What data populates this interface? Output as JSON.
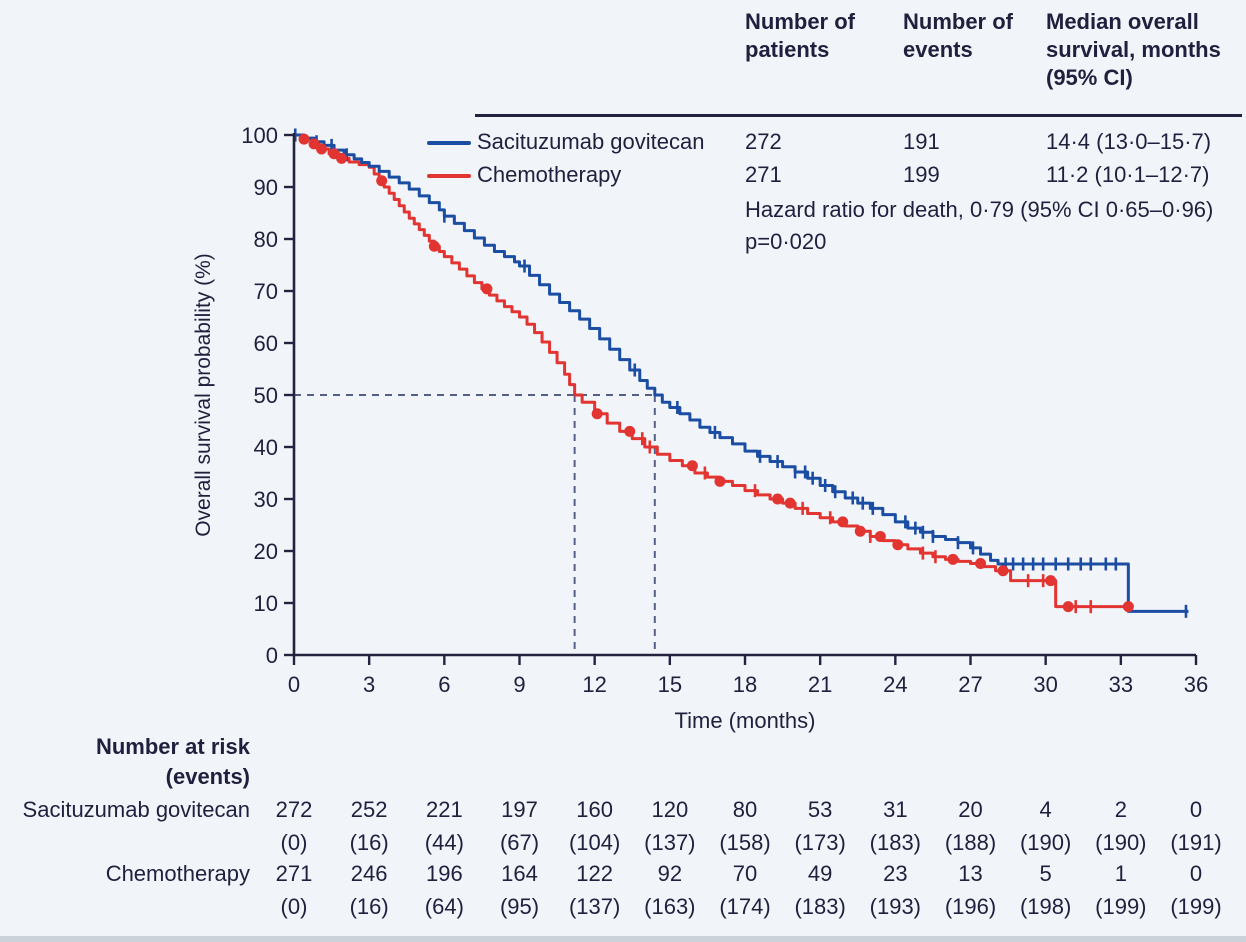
{
  "colors": {
    "background": "#f1f4f9",
    "text": "#211f3e",
    "sg_blue": "#1b4ea3",
    "chemo_red": "#e23430",
    "axis": "#23223f",
    "dash_guide": "#55608a"
  },
  "summary_table": {
    "col_headers": [
      "Number of patients",
      "Number of events",
      "Median overall survival, months (95% CI)"
    ],
    "rows": [
      {
        "label": "Sacituzumab govitecan",
        "patients": "272",
        "events": "191",
        "median": "14·4 (13·0–15·7)"
      },
      {
        "label": "Chemotherapy",
        "patients": "271",
        "events": "199",
        "median": "11·2 (10·1–12·7)"
      }
    ],
    "hazard_note": "Hazard ratio for death, 0·79 (95% CI 0·65–0·96)",
    "p_value": "p=0·020"
  },
  "chart_data": {
    "type": "line",
    "subtype": "kaplan-meier-step",
    "title": "",
    "xlabel": "Time (months)",
    "ylabel": "Overall survival probability (%)",
    "xlim": [
      0,
      36
    ],
    "ylim": [
      0,
      100
    ],
    "xticks": [
      0,
      3,
      6,
      9,
      12,
      15,
      18,
      21,
      24,
      27,
      30,
      33,
      36
    ],
    "yticks": [
      0,
      10,
      20,
      30,
      40,
      50,
      60,
      70,
      80,
      90,
      100
    ],
    "grid": false,
    "legend_position": "top-left-of-summary-table",
    "median_guides": {
      "y": 50,
      "x_values": [
        11.2,
        14.4
      ]
    },
    "series": [
      {
        "name": "Sacituzumab govitecan",
        "color": "#1b4ea3",
        "marker": "tick",
        "points": [
          [
            0,
            100
          ],
          [
            0.4,
            99.4
          ],
          [
            0.8,
            98.7
          ],
          [
            1.2,
            98.0
          ],
          [
            1.6,
            97.1
          ],
          [
            2.0,
            96.2
          ],
          [
            2.4,
            95.4
          ],
          [
            2.7,
            94.7
          ],
          [
            3.0,
            94.0
          ],
          [
            3.4,
            93.0
          ],
          [
            3.8,
            91.9
          ],
          [
            4.2,
            90.8
          ],
          [
            4.6,
            89.6
          ],
          [
            5.0,
            88.3
          ],
          [
            5.4,
            87.0
          ],
          [
            5.8,
            85.6
          ],
          [
            6.0,
            84.4
          ],
          [
            6.4,
            83.0
          ],
          [
            6.8,
            81.6
          ],
          [
            7.2,
            80.2
          ],
          [
            7.6,
            78.8
          ],
          [
            8.0,
            77.6
          ],
          [
            8.4,
            76.6
          ],
          [
            8.8,
            75.6
          ],
          [
            9.0,
            74.8
          ],
          [
            9.4,
            73.0
          ],
          [
            9.8,
            71.2
          ],
          [
            10.2,
            69.4
          ],
          [
            10.6,
            67.8
          ],
          [
            11.0,
            66.2
          ],
          [
            11.4,
            64.6
          ],
          [
            11.8,
            62.8
          ],
          [
            12.2,
            60.8
          ],
          [
            12.6,
            58.8
          ],
          [
            13.0,
            56.8
          ],
          [
            13.4,
            54.8
          ],
          [
            13.8,
            52.8
          ],
          [
            14.1,
            51.3
          ],
          [
            14.4,
            50.0
          ],
          [
            14.7,
            48.6
          ],
          [
            15.0,
            47.6
          ],
          [
            15.4,
            46.4
          ],
          [
            15.8,
            45.2
          ],
          [
            16.2,
            43.8
          ],
          [
            16.6,
            42.8
          ],
          [
            17.0,
            41.8
          ],
          [
            17.5,
            40.6
          ],
          [
            18.0,
            39.2
          ],
          [
            18.5,
            38.2
          ],
          [
            19.0,
            37.2
          ],
          [
            19.5,
            36.2
          ],
          [
            20.0,
            35.2
          ],
          [
            20.5,
            34.0
          ],
          [
            21.0,
            32.6
          ],
          [
            21.5,
            31.4
          ],
          [
            22.0,
            30.2
          ],
          [
            22.5,
            29.2
          ],
          [
            23.0,
            28.2
          ],
          [
            23.5,
            27.0
          ],
          [
            24.0,
            25.6
          ],
          [
            24.5,
            24.4
          ],
          [
            25.0,
            23.6
          ],
          [
            25.5,
            22.8
          ],
          [
            26.0,
            22.2
          ],
          [
            26.5,
            21.6
          ],
          [
            27.0,
            20.6
          ],
          [
            27.4,
            19.4
          ],
          [
            27.8,
            18.2
          ],
          [
            28.1,
            17.5
          ],
          [
            33.3,
            8.4
          ],
          [
            35.7,
            8.4
          ]
        ],
        "censor_ticks": [
          0.05,
          0.9,
          1.5,
          2.1,
          6.0,
          9.2,
          13.6,
          15.3,
          16.8,
          18.6,
          19.3,
          20.0,
          20.4,
          20.7,
          21.2,
          21.6,
          22.3,
          22.7,
          23.1,
          24.4,
          24.8,
          25.1,
          25.5,
          26.5,
          27.1,
          28.4,
          28.7,
          29.1,
          29.5,
          29.9,
          30.4,
          30.9,
          31.4,
          31.8,
          32.4,
          32.8,
          35.6
        ],
        "censor_dots": []
      },
      {
        "name": "Chemotherapy",
        "color": "#e23430",
        "marker": "dot",
        "points": [
          [
            0,
            100
          ],
          [
            0.3,
            99.2
          ],
          [
            0.7,
            98.3
          ],
          [
            1.0,
            97.3
          ],
          [
            1.4,
            96.4
          ],
          [
            1.8,
            95.5
          ],
          [
            2.2,
            94.8
          ],
          [
            2.6,
            94.3
          ],
          [
            3.0,
            93.8
          ],
          [
            3.2,
            92.5
          ],
          [
            3.4,
            91.2
          ],
          [
            3.6,
            90.0
          ],
          [
            3.8,
            88.8
          ],
          [
            4.0,
            87.6
          ],
          [
            4.2,
            86.4
          ],
          [
            4.4,
            85.2
          ],
          [
            4.6,
            84.0
          ],
          [
            4.8,
            82.9
          ],
          [
            5.0,
            81.8
          ],
          [
            5.2,
            80.7
          ],
          [
            5.4,
            79.6
          ],
          [
            5.6,
            78.6
          ],
          [
            5.8,
            77.6
          ],
          [
            6.0,
            76.6
          ],
          [
            6.3,
            75.4
          ],
          [
            6.6,
            74.2
          ],
          [
            6.9,
            72.9
          ],
          [
            7.2,
            71.6
          ],
          [
            7.5,
            70.4
          ],
          [
            7.8,
            69.2
          ],
          [
            8.1,
            68.1
          ],
          [
            8.4,
            67.0
          ],
          [
            8.7,
            66.0
          ],
          [
            9.0,
            65.0
          ],
          [
            9.3,
            63.6
          ],
          [
            9.6,
            62.0
          ],
          [
            9.9,
            60.2
          ],
          [
            10.2,
            58.2
          ],
          [
            10.5,
            56.2
          ],
          [
            10.8,
            54.0
          ],
          [
            11.0,
            52.0
          ],
          [
            11.2,
            50.0
          ],
          [
            11.5,
            48.6
          ],
          [
            12.0,
            46.4
          ],
          [
            12.5,
            44.6
          ],
          [
            13.0,
            43.0
          ],
          [
            13.5,
            41.6
          ],
          [
            14.0,
            40.0
          ],
          [
            14.5,
            38.6
          ],
          [
            15.0,
            37.4
          ],
          [
            15.5,
            36.4
          ],
          [
            16.0,
            35.0
          ],
          [
            16.5,
            34.2
          ],
          [
            17.0,
            33.4
          ],
          [
            17.5,
            32.6
          ],
          [
            18.0,
            31.6
          ],
          [
            18.5,
            30.8
          ],
          [
            19.0,
            30.0
          ],
          [
            19.5,
            29.2
          ],
          [
            20.0,
            28.2
          ],
          [
            20.5,
            27.2
          ],
          [
            21.0,
            26.4
          ],
          [
            21.5,
            25.6
          ],
          [
            22.0,
            24.8
          ],
          [
            22.5,
            23.8
          ],
          [
            23.0,
            22.8
          ],
          [
            23.5,
            22.0
          ],
          [
            24.0,
            21.2
          ],
          [
            24.5,
            20.4
          ],
          [
            25.0,
            19.6
          ],
          [
            25.5,
            18.9
          ],
          [
            26.0,
            18.4
          ],
          [
            26.5,
            18.0
          ],
          [
            27.0,
            17.6
          ],
          [
            27.5,
            17.0
          ],
          [
            28.0,
            16.2
          ],
          [
            28.6,
            14.3
          ],
          [
            30.4,
            9.3
          ],
          [
            33.3,
            9.3
          ]
        ],
        "censor_ticks": [
          13.9,
          14.2,
          16.4,
          18.4,
          20.3,
          21.4,
          23.0,
          25.1,
          25.6,
          29.3,
          29.9,
          31.2,
          31.8
        ],
        "censor_dots": [
          0.4,
          0.8,
          1.1,
          1.6,
          1.9,
          3.5,
          5.6,
          7.7,
          12.1,
          13.4,
          15.9,
          17.0,
          19.3,
          19.8,
          21.9,
          22.6,
          23.4,
          24.1,
          26.3,
          27.4,
          28.3,
          30.2,
          30.9,
          33.3
        ]
      }
    ]
  },
  "risk_table": {
    "title_line1": "Number at risk",
    "title_line2": "(events)",
    "time_points": [
      0,
      3,
      6,
      9,
      12,
      15,
      18,
      21,
      24,
      27,
      30,
      33,
      36
    ],
    "rows": [
      {
        "label": "Sacituzumab govitecan",
        "at_risk": [
          "272",
          "252",
          "221",
          "197",
          "160",
          "120",
          "80",
          "53",
          "31",
          "20",
          "4",
          "2",
          "0"
        ],
        "events": [
          "(0)",
          "(16)",
          "(44)",
          "(67)",
          "(104)",
          "(137)",
          "(158)",
          "(173)",
          "(183)",
          "(188)",
          "(190)",
          "(190)",
          "(191)"
        ]
      },
      {
        "label": "Chemotherapy",
        "at_risk": [
          "271",
          "246",
          "196",
          "164",
          "122",
          "92",
          "70",
          "49",
          "23",
          "13",
          "5",
          "1",
          "0"
        ],
        "events": [
          "(0)",
          "(16)",
          "(64)",
          "(95)",
          "(137)",
          "(163)",
          "(174)",
          "(183)",
          "(193)",
          "(196)",
          "(198)",
          "(199)",
          "(199)"
        ]
      }
    ]
  }
}
